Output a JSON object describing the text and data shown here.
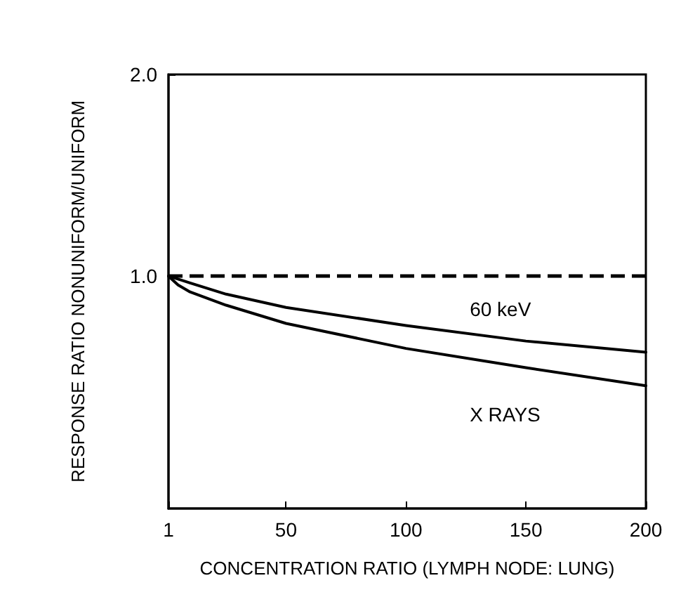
{
  "chart_data": {
    "type": "line",
    "xlabel": "CONCENTRATION RATIO (LYMPH NODE: LUNG)",
    "ylabel": "RESPONSE RATIO NONUNIFORM/UNIFORM",
    "x": [
      1,
      5,
      10,
      25,
      50,
      100,
      150,
      200
    ],
    "series": [
      {
        "name": "60 keV",
        "color": "#000000",
        "values": [
          1.0,
          0.99,
          0.977,
          0.94,
          0.898,
          0.844,
          0.8,
          0.77
        ]
      },
      {
        "name": "X RAYS",
        "color": "#000000",
        "values": [
          1.0,
          0.97,
          0.947,
          0.905,
          0.85,
          0.78,
          0.73,
          0.686
        ]
      }
    ],
    "xlim": [
      1,
      200
    ],
    "xticks": [
      1,
      50,
      100,
      150,
      200
    ],
    "log": "y",
    "ylim": [
      0.45,
      2.0
    ],
    "yticks": [
      {
        "value": 1,
        "label": "1.0"
      },
      {
        "value": 2,
        "label": "2.0"
      }
    ],
    "ref_lines": [
      {
        "axis": "y",
        "value": 1,
        "color": "#000000",
        "line_style": "dashed"
      }
    ],
    "grid": false,
    "legend": false,
    "marker": "none",
    "line_style": "solid"
  }
}
